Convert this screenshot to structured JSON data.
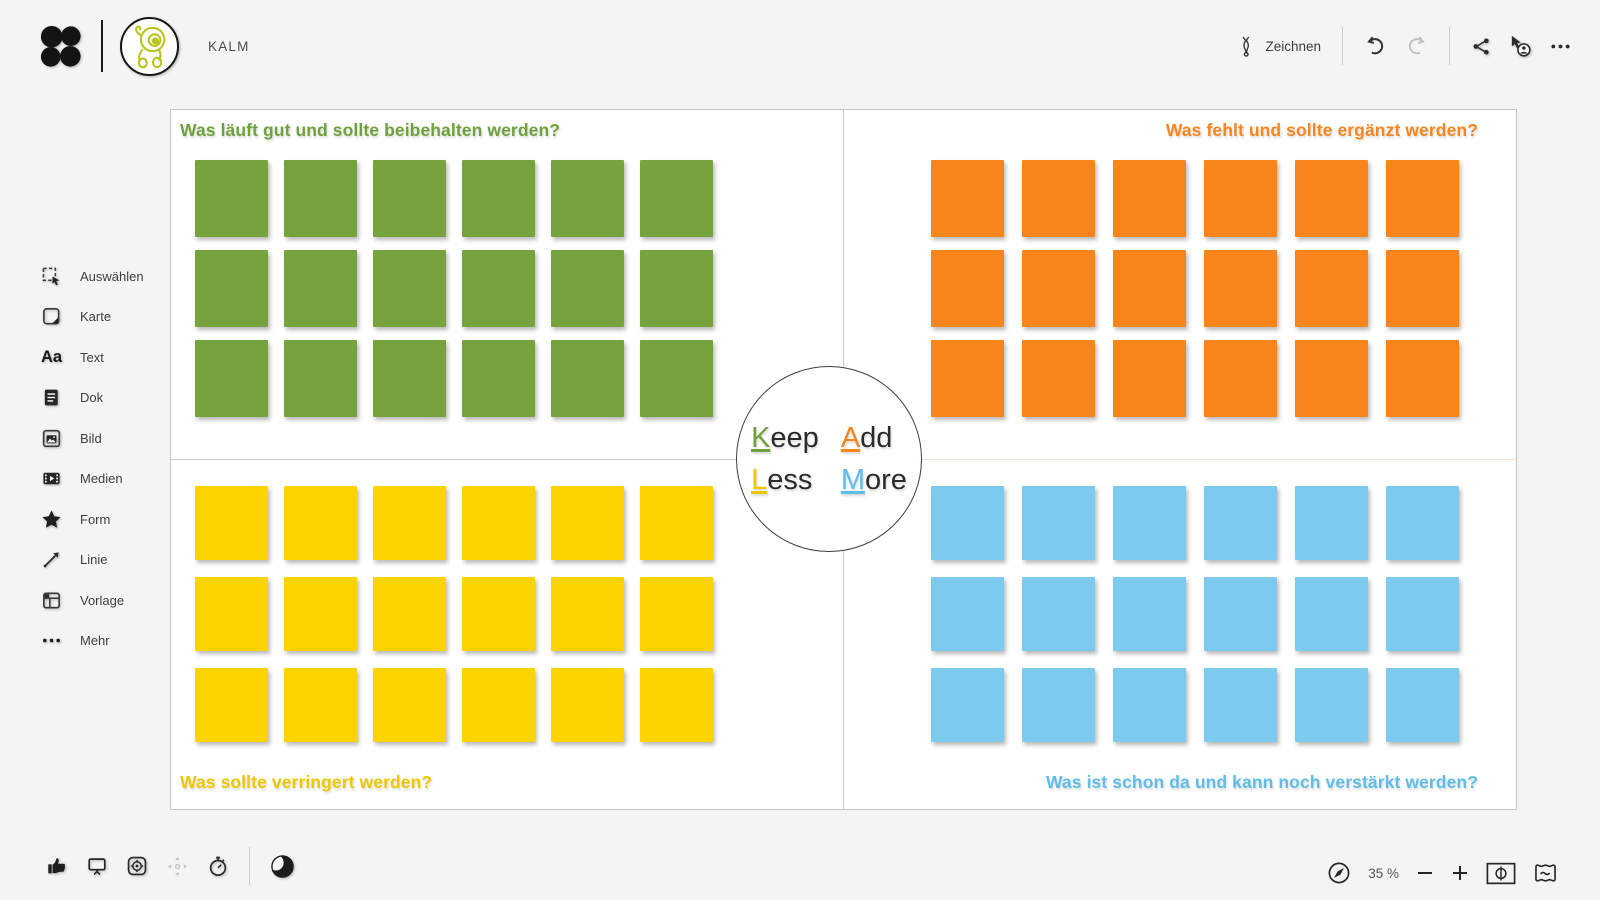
{
  "topbar": {
    "board_title": "KALM",
    "draw_label": "Zeichnen",
    "right_icons": [
      "draw-pen-icon",
      "undo-icon",
      "redo-icon",
      "share-icon",
      "presenter-icon",
      "more-icon"
    ]
  },
  "sidebar": {
    "items": [
      {
        "label": "Auswählen",
        "icon": "select-icon"
      },
      {
        "label": "Karte",
        "icon": "card-icon"
      },
      {
        "label": "Text",
        "icon": "text-icon",
        "glyph": "Aa"
      },
      {
        "label": "Dok",
        "icon": "document-icon"
      },
      {
        "label": "Bild",
        "icon": "image-icon"
      },
      {
        "label": "Medien",
        "icon": "media-icon"
      },
      {
        "label": "Form",
        "icon": "shape-icon"
      },
      {
        "label": "Linie",
        "icon": "line-icon"
      },
      {
        "label": "Vorlage",
        "icon": "template-icon"
      },
      {
        "label": "Mehr",
        "icon": "more-icon"
      }
    ]
  },
  "board": {
    "divider_accent": "#f8dcc4",
    "quadrants": [
      {
        "name": "keep",
        "title": "Was läuft gut und sollte beibehalten werden?",
        "title_color": "#6fa23c",
        "note_color": "#77a33e",
        "rows": 3,
        "cols": 6,
        "title_position": "top-left"
      },
      {
        "name": "add",
        "title": "Was fehlt und sollte ergänzt werden?",
        "title_color": "#f6861f",
        "note_color": "#f8851c",
        "rows": 3,
        "cols": 6,
        "title_position": "top-right"
      },
      {
        "name": "less",
        "title": "Was sollte verringert werden?",
        "title_color": "#eec701",
        "note_color": "#fdd300",
        "rows": 3,
        "cols": 6,
        "title_position": "bottom-left"
      },
      {
        "name": "more",
        "title": "Was ist schon da und kann noch verstärkt werden?",
        "title_color": "#5fbde8",
        "note_color": "#7ccbee",
        "rows": 3,
        "cols": 6,
        "title_position": "bottom-right"
      }
    ],
    "center": {
      "words": [
        {
          "initial": "K",
          "rest": "eep",
          "color": "#6fa23c"
        },
        {
          "initial": "A",
          "rest": "dd",
          "color": "#f6861f"
        },
        {
          "initial": "L",
          "rest": "ess",
          "color": "#eec701"
        },
        {
          "initial": "M",
          "rest": "ore",
          "color": "#5fbde8"
        }
      ]
    }
  },
  "footer": {
    "left_icons": [
      "thumbs-up-icon",
      "present-screen-icon",
      "focus-target-icon",
      "pan-icon",
      "timer-icon",
      "contrast-icon"
    ],
    "zoom_label": "35 %",
    "right_icons": [
      "compass-icon",
      "zoom-out-icon",
      "zoom-in-icon",
      "fit-screen-icon",
      "minimap-icon"
    ]
  }
}
